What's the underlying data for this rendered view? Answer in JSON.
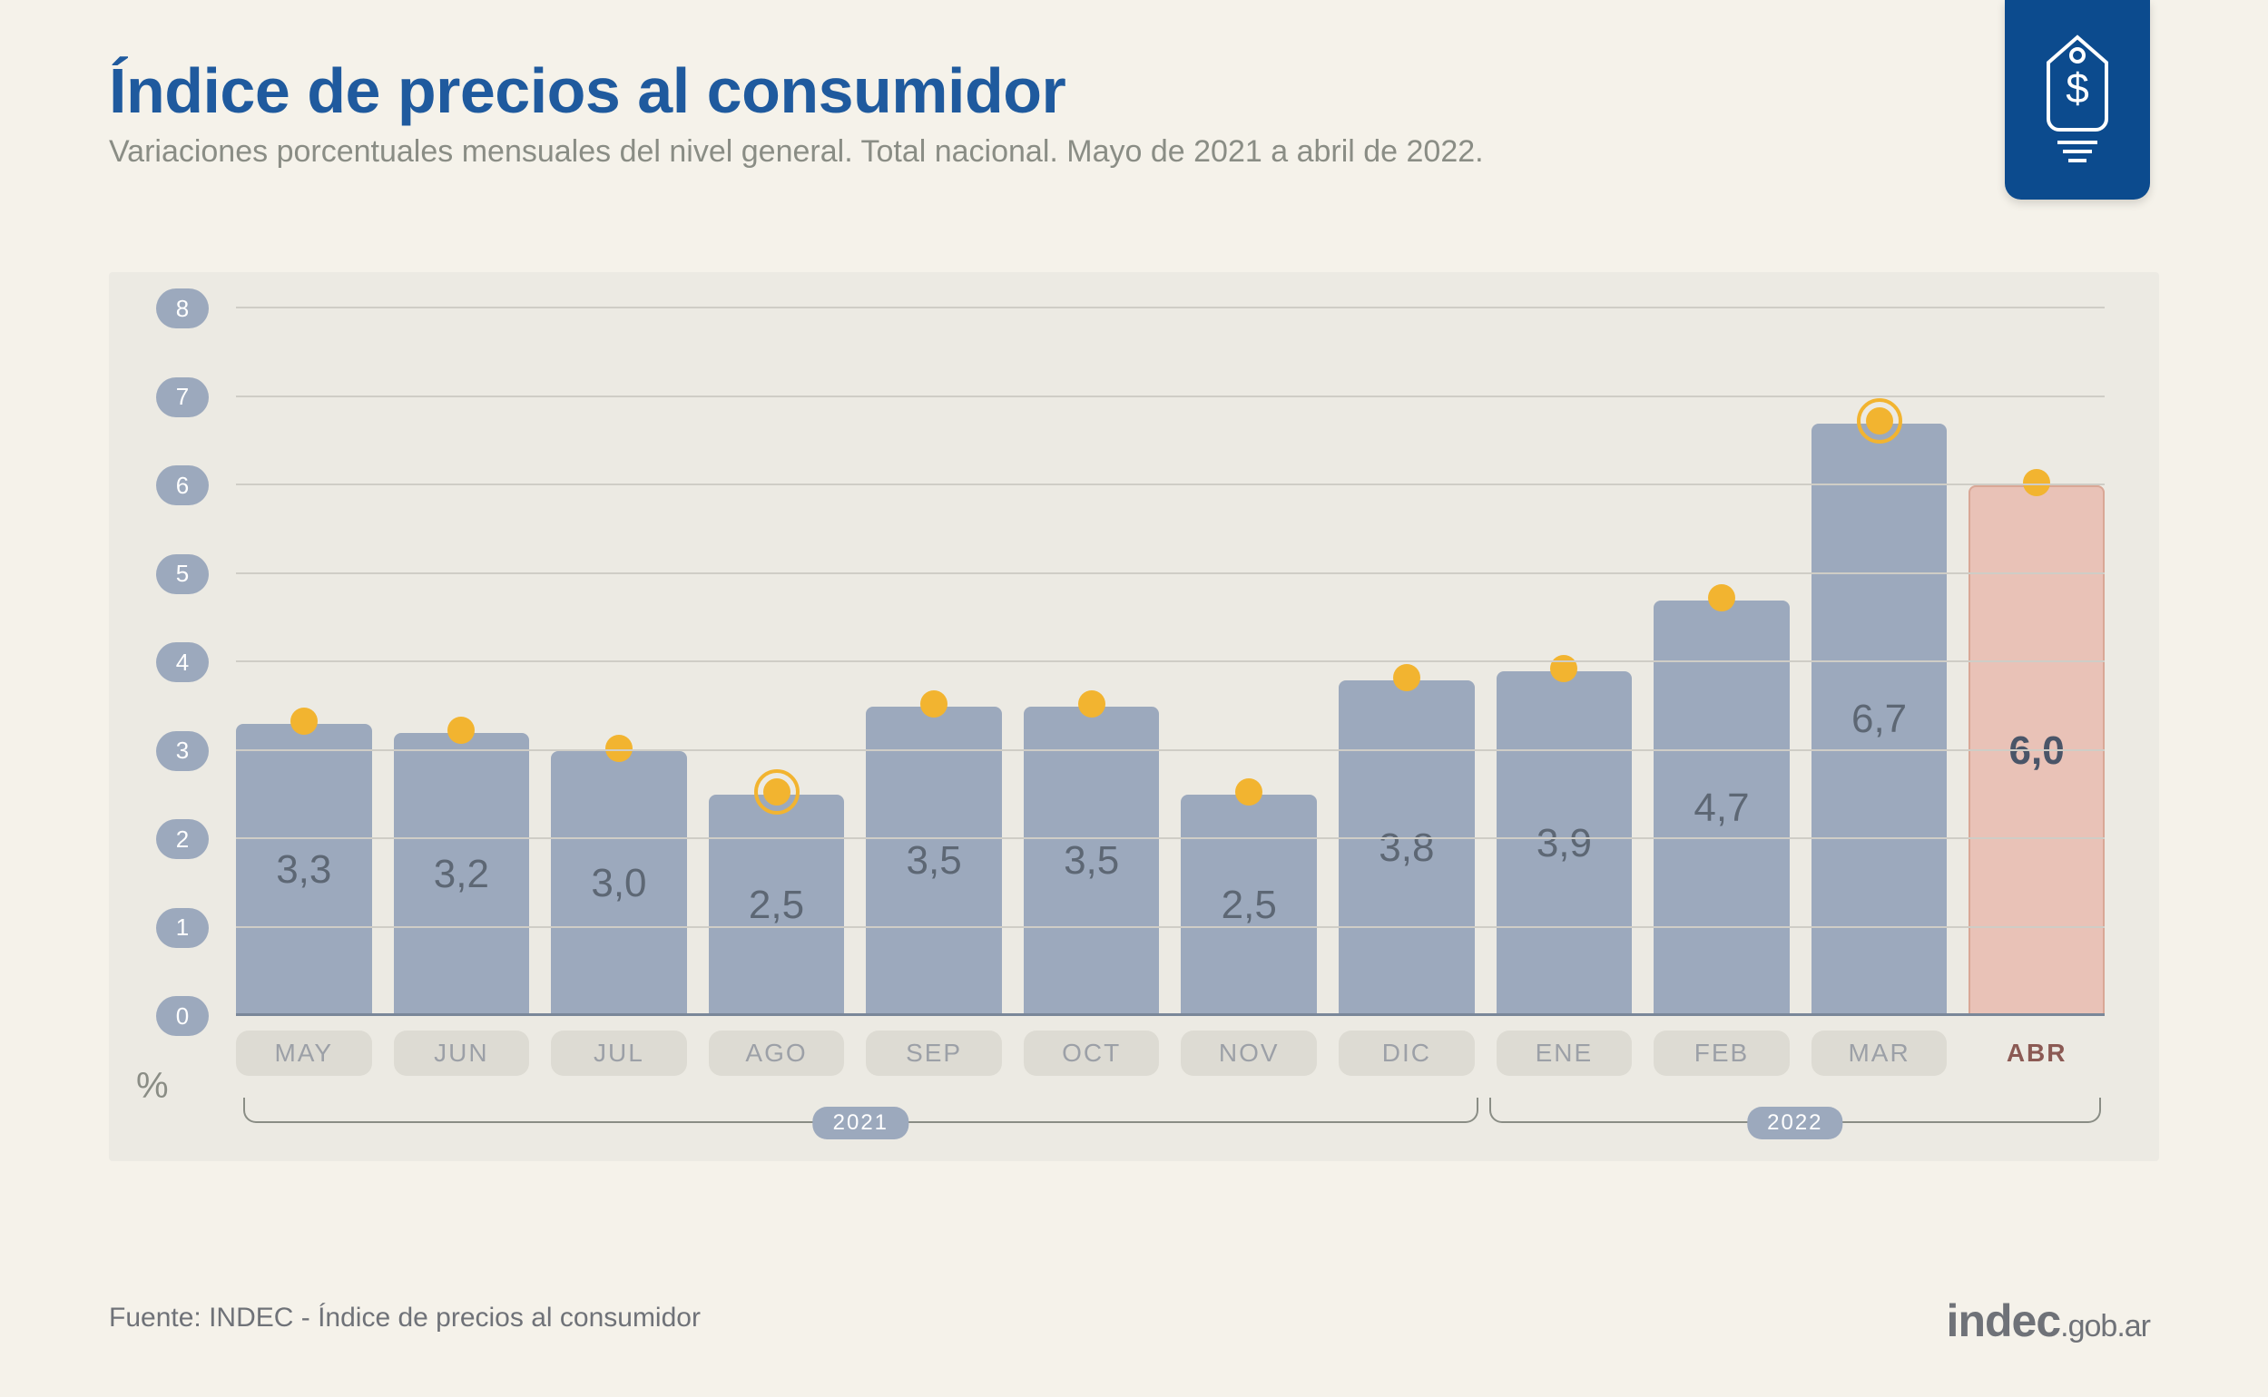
{
  "header": {
    "title": "Índice de precios al consumidor",
    "subtitle": "Variaciones porcentuales mensuales del nivel general. Total nacional. Mayo de 2021 a abril de 2022."
  },
  "chart": {
    "type": "bar",
    "y_axis_unit": "%",
    "ylim": [
      0,
      8
    ],
    "yticks": [
      0,
      1,
      2,
      3,
      4,
      5,
      6,
      7,
      8
    ],
    "background_color": "#eceae3",
    "grid_color": "#cfcdc6",
    "bar_color": "#9ca9bd",
    "bar_highlight_color": "#e9c2b7",
    "marker_color": "#f2b430",
    "tick_bubble_color": "#9ca9bd",
    "value_fontsize": 44,
    "month_fontsize": 28,
    "tick_fontsize": 26,
    "series": [
      {
        "month": "MAY",
        "value": 3.3,
        "label": "3,3",
        "highlight": false,
        "ring": false
      },
      {
        "month": "JUN",
        "value": 3.2,
        "label": "3,2",
        "highlight": false,
        "ring": false
      },
      {
        "month": "JUL",
        "value": 3.0,
        "label": "3,0",
        "highlight": false,
        "ring": false
      },
      {
        "month": "AGO",
        "value": 2.5,
        "label": "2,5",
        "highlight": false,
        "ring": true
      },
      {
        "month": "SEP",
        "value": 3.5,
        "label": "3,5",
        "highlight": false,
        "ring": false
      },
      {
        "month": "OCT",
        "value": 3.5,
        "label": "3,5",
        "highlight": false,
        "ring": false
      },
      {
        "month": "NOV",
        "value": 2.5,
        "label": "2,5",
        "highlight": false,
        "ring": false
      },
      {
        "month": "DIC",
        "value": 3.8,
        "label": "3,8",
        "highlight": false,
        "ring": false
      },
      {
        "month": "ENE",
        "value": 3.9,
        "label": "3,9",
        "highlight": false,
        "ring": false
      },
      {
        "month": "FEB",
        "value": 4.7,
        "label": "4,7",
        "highlight": false,
        "ring": false
      },
      {
        "month": "MAR",
        "value": 6.7,
        "label": "6,7",
        "highlight": false,
        "ring": true
      },
      {
        "month": "ABR",
        "value": 6.0,
        "label": "6,0",
        "highlight": true,
        "ring": false
      }
    ],
    "year_groups": [
      {
        "label": "2021",
        "from": 0,
        "to": 7
      },
      {
        "label": "2022",
        "from": 8,
        "to": 11
      }
    ]
  },
  "footer": {
    "source": "Fuente: INDEC - Índice de precios al consumidor",
    "logo_main": "indec",
    "logo_suffix": ".gob.ar"
  }
}
